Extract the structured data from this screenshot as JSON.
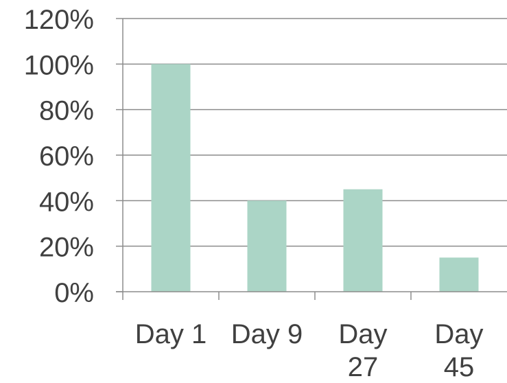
{
  "chart_data": {
    "type": "bar",
    "categories": [
      "Day 1",
      "Day 9",
      "Day 27",
      "Day 45"
    ],
    "category_lines": [
      [
        "Day 1"
      ],
      [
        "Day 9"
      ],
      [
        "Day",
        "27"
      ],
      [
        "Day",
        "45"
      ]
    ],
    "values": [
      100,
      40,
      45,
      15
    ],
    "ylim": [
      0,
      120
    ],
    "yticks": [
      0,
      20,
      40,
      60,
      80,
      100,
      120
    ],
    "ytick_labels": [
      "0%",
      "20%",
      "40%",
      "60%",
      "80%",
      "100%",
      "120%"
    ],
    "grid": true,
    "bar_color": "#abd5c6",
    "grid_color": "#8c8c8c",
    "text_color": "#404040"
  }
}
